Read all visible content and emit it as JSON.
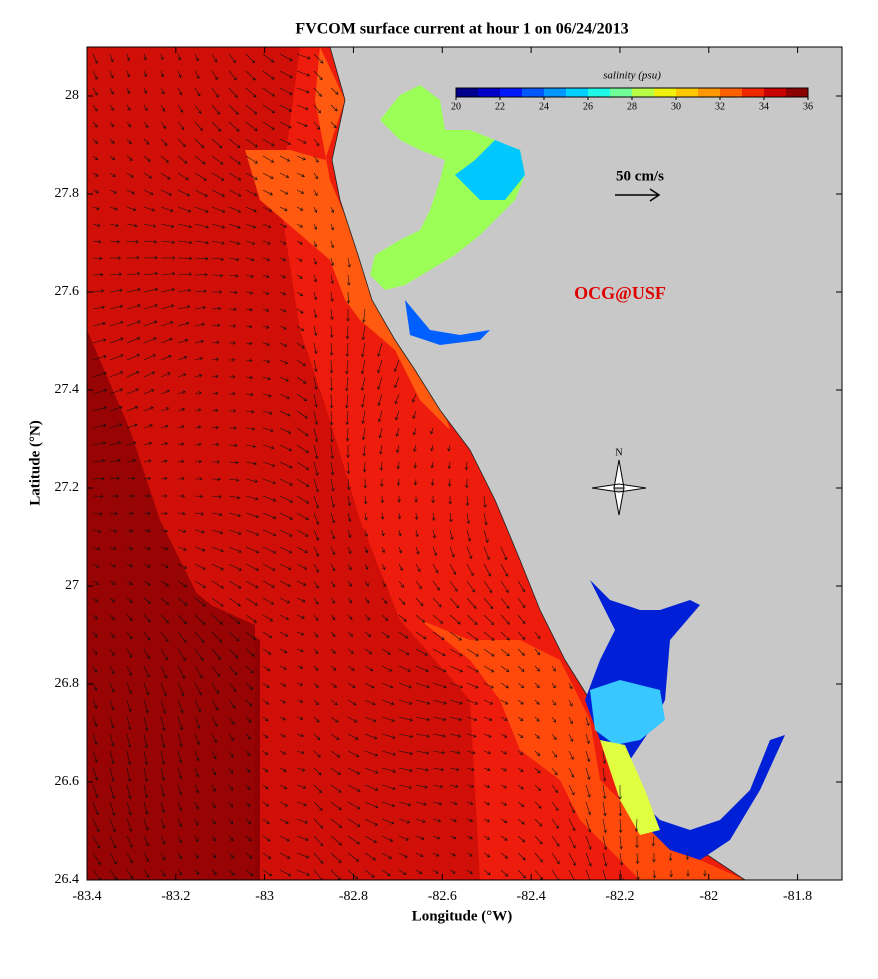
{
  "chart_data": {
    "type": "map",
    "title": "FVCOM surface current at hour 1 on 06/24/2013",
    "xlabel": "Longitude (°W)",
    "ylabel": "Latitude (°N)",
    "xlim": [
      -83.4,
      -81.7
    ],
    "ylim": [
      26.4,
      28.1
    ],
    "xticks": [
      -83.4,
      -83.2,
      -83,
      -82.8,
      -82.6,
      -82.4,
      -82.2,
      -82,
      -81.8
    ],
    "yticks": [
      26.4,
      26.6,
      26.8,
      27,
      27.2,
      27.4,
      27.6,
      27.8,
      28
    ],
    "colorbar": {
      "label": "salinity (psu)",
      "lim": [
        20,
        36
      ],
      "ticks": [
        20,
        22,
        24,
        26,
        28,
        30,
        32,
        34,
        36
      ],
      "colors": [
        "#00008f",
        "#0000c8",
        "#0018ff",
        "#0058ff",
        "#0098ff",
        "#00d0ff",
        "#20f8e8",
        "#70ff98",
        "#b8ff48",
        "#f0f010",
        "#ffc800",
        "#ff9800",
        "#ff6000",
        "#f02800",
        "#c80000",
        "#8c0000"
      ]
    },
    "scale_label": "50 cm/s",
    "credit": "OCG@USF",
    "north_label": "N"
  }
}
